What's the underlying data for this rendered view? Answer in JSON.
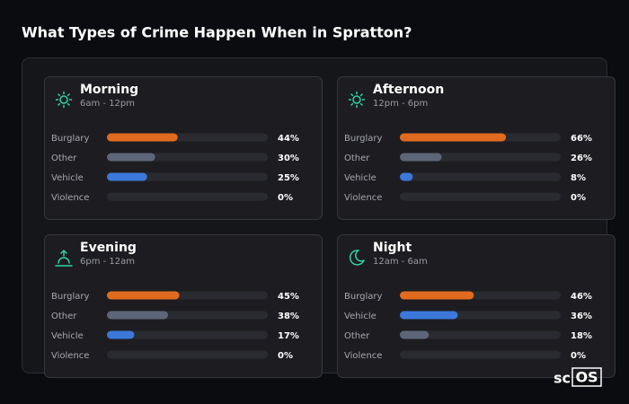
{
  "title": "What Types of Crime Happen When in Spratton?",
  "logo": {
    "prefix": "sc",
    "boxed": "OS"
  },
  "chart_data": [
    {
      "type": "bar",
      "orientation": "horizontal",
      "icon": "sun",
      "title": "Morning",
      "subtitle": "6am - 12pm",
      "categories": [
        "Burglary",
        "Other",
        "Vehicle",
        "Violence"
      ],
      "values": [
        44,
        30,
        25,
        0
      ],
      "value_labels": [
        "44%",
        "30%",
        "25%",
        "0%"
      ],
      "colors": [
        "#e06b1f",
        "#5d6678",
        "#3b78d9",
        "#5d6678"
      ],
      "xlim": [
        0,
        100
      ]
    },
    {
      "type": "bar",
      "orientation": "horizontal",
      "icon": "sun",
      "title": "Afternoon",
      "subtitle": "12pm - 6pm",
      "categories": [
        "Burglary",
        "Other",
        "Vehicle",
        "Violence"
      ],
      "values": [
        66,
        26,
        8,
        0
      ],
      "value_labels": [
        "66%",
        "26%",
        "8%",
        "0%"
      ],
      "colors": [
        "#e06b1f",
        "#5d6678",
        "#3b78d9",
        "#5d6678"
      ],
      "xlim": [
        0,
        100
      ]
    },
    {
      "type": "bar",
      "orientation": "horizontal",
      "icon": "sunrise",
      "title": "Evening",
      "subtitle": "6pm - 12am",
      "categories": [
        "Burglary",
        "Other",
        "Vehicle",
        "Violence"
      ],
      "values": [
        45,
        38,
        17,
        0
      ],
      "value_labels": [
        "45%",
        "38%",
        "17%",
        "0%"
      ],
      "colors": [
        "#e06b1f",
        "#5d6678",
        "#3b78d9",
        "#5d6678"
      ],
      "xlim": [
        0,
        100
      ]
    },
    {
      "type": "bar",
      "orientation": "horizontal",
      "icon": "moon",
      "title": "Night",
      "subtitle": "12am - 6am",
      "categories": [
        "Burglary",
        "Vehicle",
        "Other",
        "Violence"
      ],
      "values": [
        46,
        36,
        18,
        0
      ],
      "value_labels": [
        "46%",
        "36%",
        "18%",
        "0%"
      ],
      "colors": [
        "#e06b1f",
        "#3b78d9",
        "#5d6678",
        "#5d6678"
      ],
      "xlim": [
        0,
        100
      ]
    }
  ]
}
